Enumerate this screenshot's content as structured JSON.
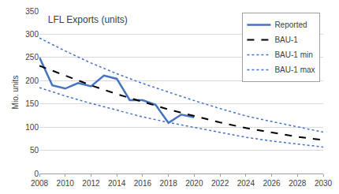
{
  "chart_data": {
    "type": "line",
    "title": "LFL Exports (units)",
    "y_label": "Mio. units",
    "series": [
      {
        "name": "Reported",
        "color": "#4472c4",
        "line_style": "solid",
        "x": [
          2008,
          2009,
          2010,
          2011,
          2012,
          2013,
          2014,
          2015,
          2016,
          2017,
          2018,
          2019,
          2020
        ],
        "values": [
          250,
          190,
          183,
          195,
          188,
          211,
          204,
          158,
          158,
          148,
          109,
          127,
          121
        ]
      },
      {
        "name": "BAU-1",
        "color": "#000000",
        "line_style": "dash",
        "x": [
          2008,
          2010,
          2012,
          2014,
          2016,
          2018,
          2020,
          2022,
          2024,
          2026,
          2028,
          2030
        ],
        "values": [
          232,
          211,
          190,
          171,
          154,
          138,
          124,
          110,
          98,
          88,
          79,
          72
        ]
      },
      {
        "name": "BAU-1 min",
        "color": "#4472c4",
        "line_style": "dot",
        "x": [
          2008,
          2010,
          2012,
          2014,
          2016,
          2018,
          2020,
          2022,
          2024,
          2026,
          2028,
          2030
        ],
        "values": [
          185,
          167,
          151,
          136,
          122,
          110,
          99,
          88,
          78,
          70,
          63,
          57
        ]
      },
      {
        "name": "BAU-1 max",
        "color": "#4472c4",
        "line_style": "dot",
        "x": [
          2008,
          2010,
          2012,
          2014,
          2016,
          2018,
          2020,
          2022,
          2024,
          2026,
          2028,
          2030
        ],
        "values": [
          292,
          264,
          238,
          215,
          194,
          175,
          157,
          140,
          124,
          112,
          100,
          89
        ]
      }
    ],
    "xlim": [
      2008,
      2030
    ],
    "xticks": [
      2008,
      2010,
      2012,
      2014,
      2016,
      2018,
      2020,
      2022,
      2024,
      2026,
      2028,
      2030
    ],
    "ylim": [
      0,
      350
    ],
    "yticks": [
      0,
      50,
      100,
      150,
      200,
      250,
      300,
      350
    ],
    "grid": true,
    "legend": "top right"
  }
}
